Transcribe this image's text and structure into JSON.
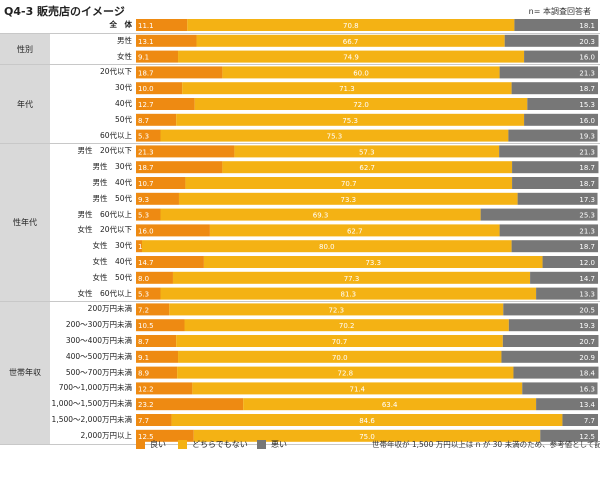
{
  "title": "Q4-3  販売店のイメージ",
  "top_note": "n= 本調査回答者",
  "footnote": "世帯年収が 1,500 万円以上は n が 30 未満のため、参考値として記載",
  "colors": {
    "good": "#ee8a12",
    "neutral": "#f4b214",
    "bad": "#777777"
  },
  "groups": [
    {
      "label": "性別",
      "rows": [
        1,
        2
      ]
    },
    {
      "label": "年代",
      "rows": [
        3,
        7
      ]
    },
    {
      "label": "性年代",
      "rows": [
        8,
        17
      ]
    },
    {
      "label": "世帯年収",
      "rows": [
        18,
        26
      ]
    }
  ],
  "chart_data": {
    "type": "bar",
    "stacked": true,
    "orientation": "horizontal",
    "xlim": [
      0,
      100
    ],
    "legend": [
      "良い",
      "どちらでもない",
      "悪い"
    ],
    "categories": [
      "全　体",
      "男性",
      "女性",
      "20代以下",
      "30代",
      "40代",
      "50代",
      "60代以上",
      "男性　20代以下",
      "男性　30代",
      "男性　40代",
      "男性　50代",
      "男性　60代以上",
      "女性　20代以下",
      "女性　30代",
      "女性　40代",
      "女性　50代",
      "女性　60代以上",
      "200万円未満",
      "200〜300万円未満",
      "300〜400万円未満",
      "400〜500万円未満",
      "500〜700万円未満",
      "700〜1,000万円未満",
      "1,000〜1,500万円未満",
      "1,500〜2,000万円未満",
      "2,000万円以上"
    ],
    "series": [
      {
        "name": "良い",
        "values": [
          11.1,
          13.1,
          9.1,
          18.7,
          10.0,
          12.7,
          8.7,
          5.3,
          21.3,
          18.7,
          10.7,
          9.3,
          5.3,
          16.0,
          1.3,
          14.7,
          8.0,
          5.3,
          7.2,
          10.5,
          8.7,
          9.1,
          8.9,
          12.2,
          23.2,
          7.7,
          12.5
        ]
      },
      {
        "name": "どちらでもない",
        "values": [
          70.8,
          66.7,
          74.9,
          60.0,
          71.3,
          72.0,
          75.3,
          75.3,
          57.3,
          62.7,
          70.7,
          73.3,
          69.3,
          62.7,
          80.0,
          73.3,
          77.3,
          81.3,
          72.3,
          70.2,
          70.7,
          70.0,
          72.8,
          71.4,
          63.4,
          84.6,
          75.0
        ]
      },
      {
        "name": "悪い",
        "values": [
          18.1,
          20.3,
          16.0,
          21.3,
          18.7,
          15.3,
          16.0,
          19.3,
          21.3,
          18.7,
          18.7,
          17.3,
          25.3,
          21.3,
          18.7,
          12.0,
          14.7,
          13.3,
          20.5,
          19.3,
          20.7,
          20.9,
          18.4,
          16.3,
          13.4,
          7.7,
          12.5
        ]
      }
    ]
  }
}
